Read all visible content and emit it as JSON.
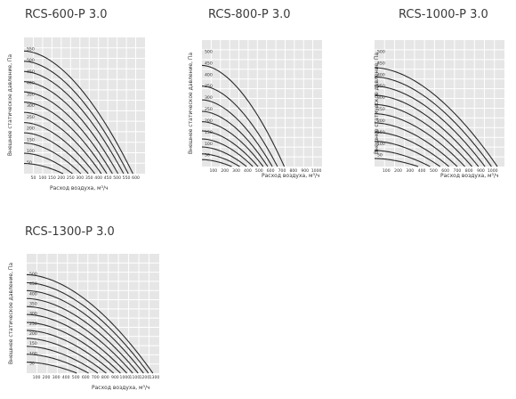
{
  "chart_data": [
    {
      "type": "line",
      "title": "RCS-600-P 3.0",
      "xlabel": "Расход воздуха, м³/ч",
      "ylabel": "Внешнее статическое давление, Па",
      "xlim": [
        0,
        650
      ],
      "ylim": [
        0,
        600
      ],
      "xticks": [
        50,
        100,
        150,
        200,
        250,
        300,
        350,
        400,
        450,
        500,
        550,
        600
      ],
      "yticks": [
        50,
        100,
        150,
        200,
        250,
        300,
        350,
        400,
        450,
        500,
        550
      ],
      "grid": true,
      "series": [
        {
          "p0": 540,
          "qmax": 585
        },
        {
          "p0": 495,
          "qmax": 560
        },
        {
          "p0": 450,
          "qmax": 535
        },
        {
          "p0": 405,
          "qmax": 505
        },
        {
          "p0": 360,
          "qmax": 475
        },
        {
          "p0": 315,
          "qmax": 445
        },
        {
          "p0": 270,
          "qmax": 415
        },
        {
          "p0": 225,
          "qmax": 380
        },
        {
          "p0": 180,
          "qmax": 345
        },
        {
          "p0": 135,
          "qmax": 305
        },
        {
          "p0": 90,
          "qmax": 260
        },
        {
          "p0": 45,
          "qmax": 210
        }
      ]
    },
    {
      "type": "line",
      "title": "RCS-800-P 3.0",
      "xlabel": "Расход воздуха, м³/ч",
      "ylabel": "Внешнее статическое давление, Па",
      "xlim": [
        0,
        1050
      ],
      "ylim": [
        0,
        550
      ],
      "xticks": [
        100,
        200,
        300,
        400,
        500,
        600,
        700,
        800,
        900,
        1000
      ],
      "yticks": [
        50,
        100,
        150,
        200,
        250,
        300,
        350,
        400,
        450,
        500
      ],
      "grid": true,
      "series": [
        {
          "p0": 440,
          "qmax": 720
        },
        {
          "p0": 350,
          "qmax": 660
        },
        {
          "p0": 290,
          "qmax": 615
        },
        {
          "p0": 240,
          "qmax": 575
        },
        {
          "p0": 195,
          "qmax": 535
        },
        {
          "p0": 155,
          "qmax": 490
        },
        {
          "p0": 120,
          "qmax": 445
        },
        {
          "p0": 85,
          "qmax": 390
        },
        {
          "p0": 55,
          "qmax": 330
        },
        {
          "p0": 30,
          "qmax": 260
        }
      ]
    },
    {
      "type": "line",
      "title": "RCS-1000-P 3.0",
      "xlabel": "Расход воздуха, м³/ч",
      "ylabel": "Внешнее статическое давление, Па",
      "xlim": [
        0,
        1100
      ],
      "ylim": [
        0,
        550
      ],
      "xticks": [
        100,
        200,
        300,
        400,
        500,
        600,
        700,
        800,
        900,
        1000
      ],
      "yticks": [
        50,
        100,
        150,
        200,
        250,
        300,
        350,
        400,
        450,
        500
      ],
      "grid": true,
      "series": [
        {
          "p0": 430,
          "qmax": 1040
        },
        {
          "p0": 390,
          "qmax": 990
        },
        {
          "p0": 350,
          "qmax": 935
        },
        {
          "p0": 310,
          "qmax": 880
        },
        {
          "p0": 270,
          "qmax": 825
        },
        {
          "p0": 230,
          "qmax": 765
        },
        {
          "p0": 190,
          "qmax": 700
        },
        {
          "p0": 150,
          "qmax": 630
        },
        {
          "p0": 110,
          "qmax": 555
        },
        {
          "p0": 70,
          "qmax": 470
        },
        {
          "p0": 35,
          "qmax": 370
        }
      ]
    },
    {
      "type": "line",
      "title": "RCS-1300-P 3.0",
      "xlabel": "Расход воздуха, м³/ч",
      "ylabel": "Внешнее статическое давление, Па",
      "xlim": [
        0,
        1350
      ],
      "ylim": [
        0,
        600
      ],
      "xticks": [
        100,
        200,
        300,
        400,
        500,
        600,
        700,
        800,
        900,
        1000,
        1100,
        1200,
        1300
      ],
      "yticks": [
        50,
        100,
        150,
        200,
        250,
        300,
        350,
        400,
        450,
        500
      ],
      "grid": true,
      "series": [
        {
          "p0": 495,
          "qmax": 1285
        },
        {
          "p0": 455,
          "qmax": 1240
        },
        {
          "p0": 415,
          "qmax": 1190
        },
        {
          "p0": 375,
          "qmax": 1135
        },
        {
          "p0": 335,
          "qmax": 1080
        },
        {
          "p0": 295,
          "qmax": 1020
        },
        {
          "p0": 255,
          "qmax": 955
        },
        {
          "p0": 215,
          "qmax": 885
        },
        {
          "p0": 175,
          "qmax": 810
        },
        {
          "p0": 135,
          "qmax": 725
        },
        {
          "p0": 95,
          "qmax": 630
        },
        {
          "p0": 55,
          "qmax": 510
        }
      ]
    }
  ]
}
